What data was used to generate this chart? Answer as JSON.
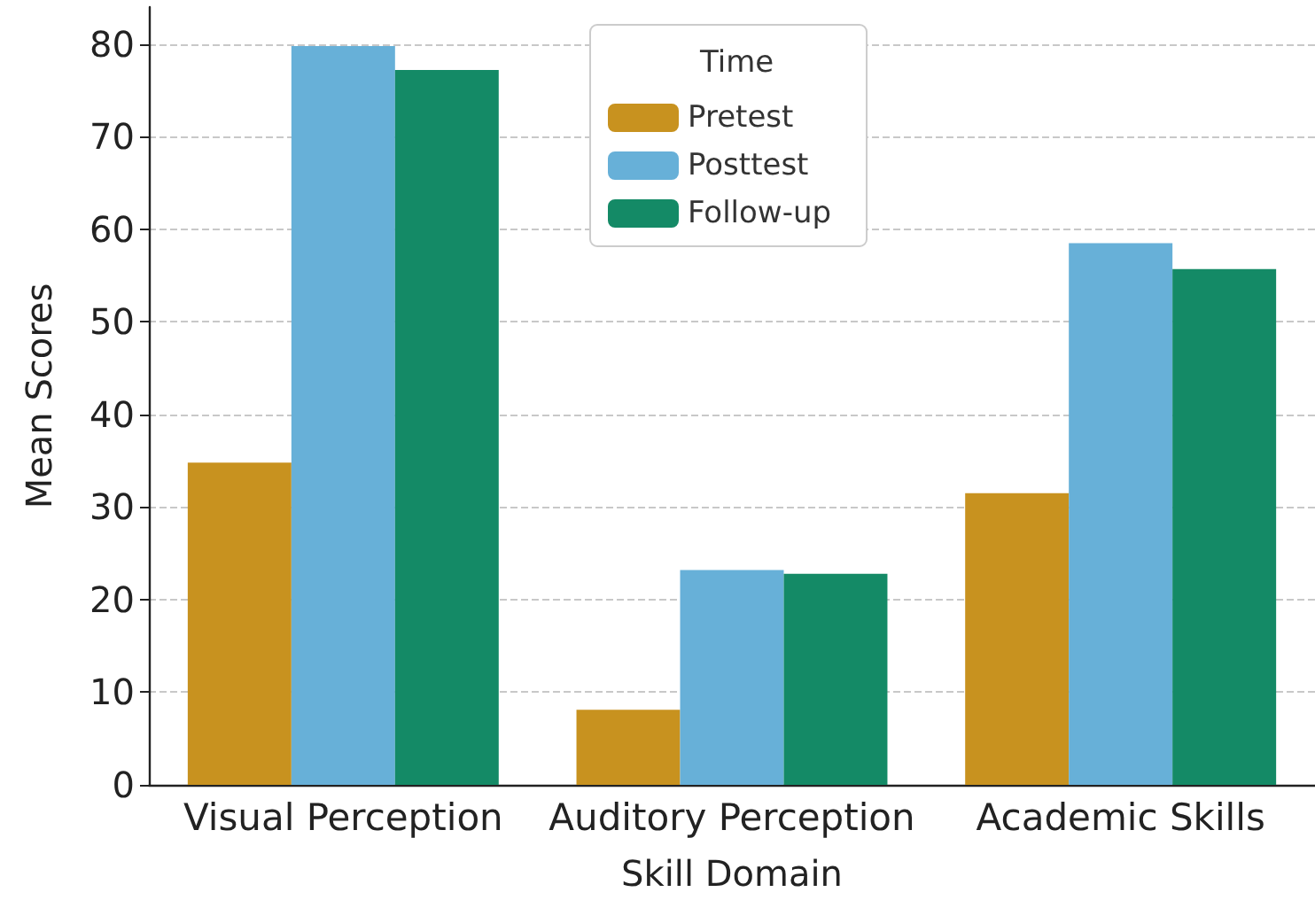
{
  "chart_data": {
    "type": "bar",
    "xlabel": "Skill Domain",
    "ylabel": "Mean Scores",
    "legend_title": "Time",
    "categories": [
      "Visual Perception",
      "Auditory Perception",
      "Academic Skills"
    ],
    "series": [
      {
        "name": "Pretest",
        "color": "#c8921f",
        "values": [
          34.8,
          8.1,
          31.5
        ]
      },
      {
        "name": "Posttest",
        "color": "#67b0d8",
        "values": [
          79.8,
          23.2,
          58.5
        ]
      },
      {
        "name": "Follow-up",
        "color": "#148a66",
        "values": [
          77.2,
          22.8,
          55.7
        ]
      }
    ],
    "ylim": [
      0,
      84
    ],
    "yticks": [
      0,
      10,
      20,
      30,
      40,
      50,
      60,
      70,
      80
    ],
    "grid": "y",
    "legend": "top"
  }
}
